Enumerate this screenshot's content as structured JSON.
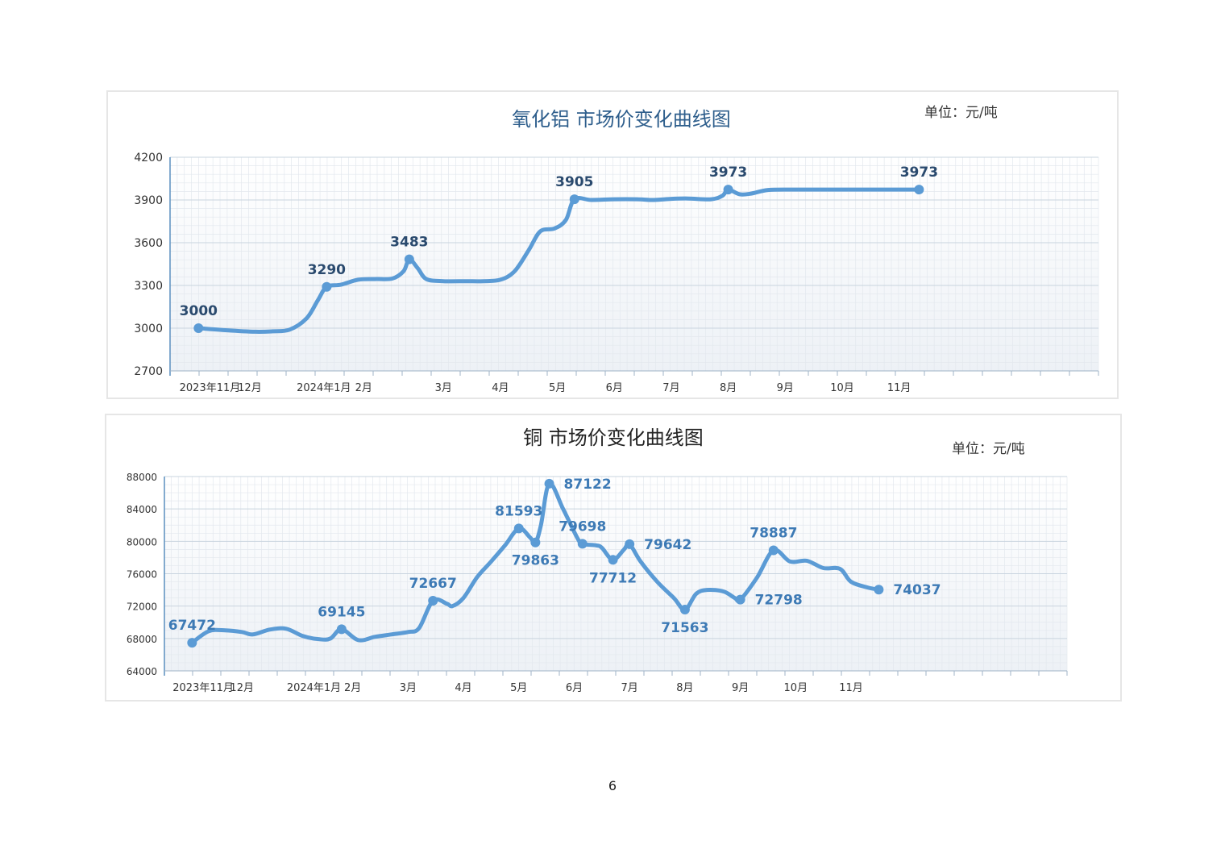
{
  "page": {
    "number": "6"
  },
  "chart_data": [
    {
      "type": "line",
      "title": "氧化铝  市场价变化曲线图",
      "unit_label": "单位：元/吨",
      "line_color": "#5b9bd5",
      "title_color": "#2e5e8c",
      "ylim": [
        2700,
        4200
      ],
      "yticks": [
        "2700",
        "3000",
        "3300",
        "3600",
        "3900",
        "4200"
      ],
      "xlim": [
        0,
        16.3
      ],
      "month_labels": [
        {
          "label": "2023年11月",
          "x": 0.7
        },
        {
          "label": "12月",
          "x": 1.4
        },
        {
          "label": "2024年1月",
          "x": 2.7
        },
        {
          "label": "2月",
          "x": 3.4
        },
        {
          "label": "3月",
          "x": 4.8
        },
        {
          "label": "4月",
          "x": 5.8
        },
        {
          "label": "5月",
          "x": 6.8
        },
        {
          "label": "6月",
          "x": 7.8
        },
        {
          "label": "7月",
          "x": 8.8
        },
        {
          "label": "8月",
          "x": 9.8
        },
        {
          "label": "9月",
          "x": 10.8
        },
        {
          "label": "10月",
          "x": 11.8
        },
        {
          "label": "11月",
          "x": 12.8
        }
      ],
      "series": [
        {
          "points": [
            [
              0.5,
              3000
            ],
            [
              1.0,
              2985
            ],
            [
              1.5,
              2975
            ],
            [
              1.8,
              2978
            ],
            [
              2.1,
              2990
            ],
            [
              2.4,
              3070
            ],
            [
              2.6,
              3200
            ],
            [
              2.75,
              3290
            ],
            [
              3.0,
              3305
            ],
            [
              3.3,
              3340
            ],
            [
              3.6,
              3345
            ],
            [
              3.9,
              3348
            ],
            [
              4.1,
              3400
            ],
            [
              4.2,
              3483
            ],
            [
              4.35,
              3420
            ],
            [
              4.5,
              3345
            ],
            [
              4.8,
              3330
            ],
            [
              5.2,
              3330
            ],
            [
              5.5,
              3330
            ],
            [
              5.8,
              3340
            ],
            [
              6.05,
              3400
            ],
            [
              6.3,
              3550
            ],
            [
              6.5,
              3680
            ],
            [
              6.75,
              3700
            ],
            [
              6.95,
              3760
            ],
            [
              7.1,
              3905
            ],
            [
              7.4,
              3900
            ],
            [
              7.8,
              3905
            ],
            [
              8.2,
              3905
            ],
            [
              8.5,
              3900
            ],
            [
              8.8,
              3908
            ],
            [
              9.1,
              3910
            ],
            [
              9.5,
              3905
            ],
            [
              9.7,
              3930
            ],
            [
              9.8,
              3973
            ],
            [
              10.0,
              3940
            ],
            [
              10.2,
              3945
            ],
            [
              10.5,
              3970
            ],
            [
              11.0,
              3973
            ],
            [
              12.0,
              3973
            ],
            [
              13.0,
              3973
            ],
            [
              13.15,
              3973
            ]
          ]
        }
      ],
      "markers": [
        {
          "x": 0.5,
          "y": 3000,
          "label": "3000",
          "label_pos": "above"
        },
        {
          "x": 2.75,
          "y": 3290,
          "label": "3290",
          "label_pos": "above"
        },
        {
          "x": 4.2,
          "y": 3483,
          "label": "3483",
          "label_pos": "above"
        },
        {
          "x": 7.1,
          "y": 3905,
          "label": "3905",
          "label_pos": "above"
        },
        {
          "x": 9.8,
          "y": 3973,
          "label": "3973",
          "label_pos": "above"
        },
        {
          "x": 13.15,
          "y": 3973,
          "label": "3973",
          "label_pos": "above"
        }
      ]
    },
    {
      "type": "line",
      "title": "铜  市场价变化曲线图",
      "unit_label": "单位：元/吨",
      "line_color": "#5b9bd5",
      "title_color": "#222222",
      "ylim": [
        64000,
        88000
      ],
      "yticks": [
        "64000",
        "68000",
        "72000",
        "76000",
        "80000",
        "84000",
        "88000"
      ],
      "xlim": [
        0,
        16.3
      ],
      "month_labels": [
        {
          "label": "2023年11月",
          "x": 0.7
        },
        {
          "label": "12月",
          "x": 1.4
        },
        {
          "label": "2024年1月",
          "x": 2.7
        },
        {
          "label": "2月",
          "x": 3.4
        },
        {
          "label": "3月",
          "x": 4.4
        },
        {
          "label": "4月",
          "x": 5.4
        },
        {
          "label": "5月",
          "x": 6.4
        },
        {
          "label": "6月",
          "x": 7.4
        },
        {
          "label": "7月",
          "x": 8.4
        },
        {
          "label": "8月",
          "x": 9.4
        },
        {
          "label": "9月",
          "x": 10.4
        },
        {
          "label": "10月",
          "x": 11.4
        },
        {
          "label": "11月",
          "x": 12.4
        }
      ],
      "series": [
        {
          "points": [
            [
              0.5,
              67472
            ],
            [
              0.8,
              68900
            ],
            [
              1.1,
              69000
            ],
            [
              1.4,
              68800
            ],
            [
              1.6,
              68500
            ],
            [
              1.9,
              69100
            ],
            [
              2.2,
              69200
            ],
            [
              2.5,
              68300
            ],
            [
              2.8,
              67900
            ],
            [
              3.0,
              68000
            ],
            [
              3.2,
              69145
            ],
            [
              3.5,
              67800
            ],
            [
              3.8,
              68200
            ],
            [
              4.1,
              68500
            ],
            [
              4.4,
              68800
            ],
            [
              4.6,
              69300
            ],
            [
              4.85,
              72667
            ],
            [
              5.1,
              72300
            ],
            [
              5.2,
              72000
            ],
            [
              5.4,
              73000
            ],
            [
              5.65,
              75600
            ],
            [
              5.9,
              77500
            ],
            [
              6.15,
              79500
            ],
            [
              6.4,
              81593
            ],
            [
              6.6,
              80500
            ],
            [
              6.7,
              79863
            ],
            [
              6.8,
              82000
            ],
            [
              6.95,
              87122
            ],
            [
              7.2,
              84000
            ],
            [
              7.45,
              80500
            ],
            [
              7.55,
              79698
            ],
            [
              7.8,
              79500
            ],
            [
              7.9,
              79200
            ],
            [
              8.1,
              77712
            ],
            [
              8.3,
              79000
            ],
            [
              8.4,
              79642
            ],
            [
              8.6,
              77500
            ],
            [
              8.9,
              75000
            ],
            [
              9.2,
              73000
            ],
            [
              9.4,
              71563
            ],
            [
              9.6,
              73500
            ],
            [
              9.8,
              74000
            ],
            [
              10.1,
              73800
            ],
            [
              10.3,
              73000
            ],
            [
              10.4,
              72798
            ],
            [
              10.7,
              75500
            ],
            [
              11.0,
              78887
            ],
            [
              11.3,
              77500
            ],
            [
              11.6,
              77600
            ],
            [
              11.9,
              76700
            ],
            [
              12.2,
              76600
            ],
            [
              12.4,
              75000
            ],
            [
              12.7,
              74300
            ],
            [
              12.9,
              74037
            ]
          ]
        }
      ],
      "markers": [
        {
          "x": 0.5,
          "y": 67472,
          "label": "67472",
          "label_pos": "above"
        },
        {
          "x": 3.2,
          "y": 69145,
          "label": "69145",
          "label_pos": "above"
        },
        {
          "x": 4.85,
          "y": 72667,
          "label": "72667",
          "label_pos": "above"
        },
        {
          "x": 6.4,
          "y": 81593,
          "label": "81593",
          "label_pos": "above"
        },
        {
          "x": 6.7,
          "y": 79863,
          "label": "79863",
          "label_pos": "below"
        },
        {
          "x": 6.95,
          "y": 87122,
          "label": "87122",
          "label_pos": "right"
        },
        {
          "x": 7.55,
          "y": 79698,
          "label": "79698",
          "label_pos": "above"
        },
        {
          "x": 8.1,
          "y": 77712,
          "label": "77712",
          "label_pos": "below"
        },
        {
          "x": 8.4,
          "y": 79642,
          "label": "79642",
          "label_pos": "right"
        },
        {
          "x": 9.4,
          "y": 71563,
          "label": "71563",
          "label_pos": "below"
        },
        {
          "x": 10.4,
          "y": 72798,
          "label": "72798",
          "label_pos": "right"
        },
        {
          "x": 11.0,
          "y": 78887,
          "label": "78887",
          "label_pos": "above"
        },
        {
          "x": 12.9,
          "y": 74037,
          "label": "74037",
          "label_pos": "right"
        }
      ]
    }
  ]
}
